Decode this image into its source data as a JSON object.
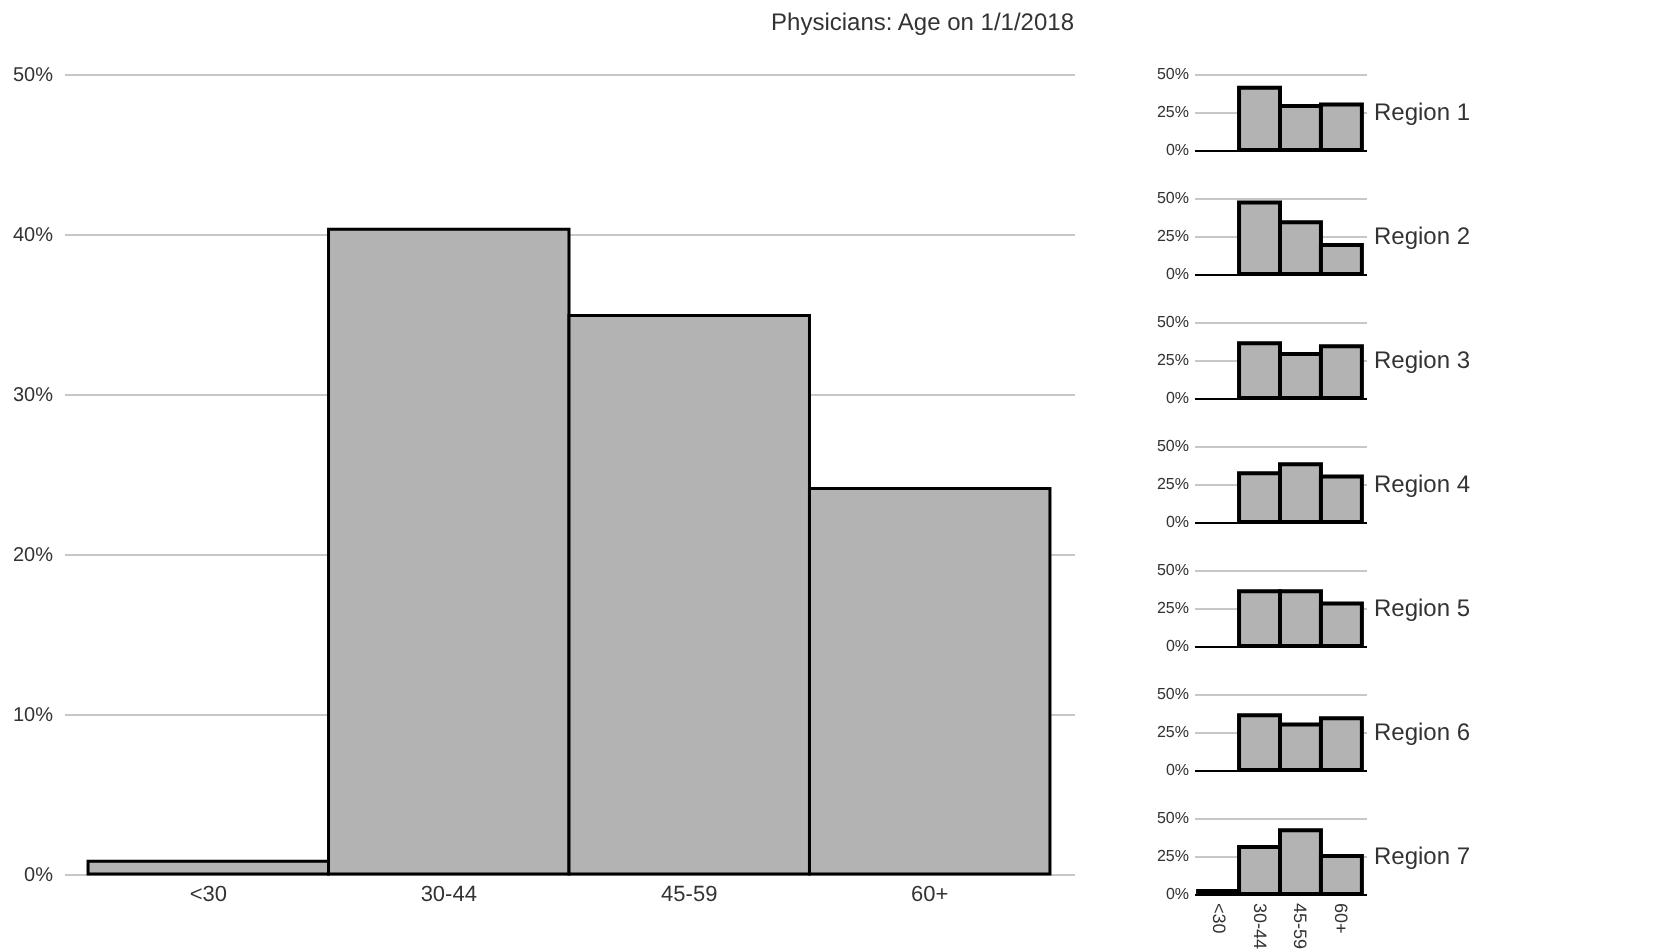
{
  "chart_data": [
    {
      "type": "bar",
      "title": "Physicians: Age on 1/1/2018",
      "categories": [
        "<30",
        "30-44",
        "45-59",
        "60+"
      ],
      "values": [
        0.8,
        40.3,
        34.9,
        24.1
      ],
      "color": "#b3b3b3",
      "ylim": [
        0,
        50
      ],
      "yticks": [
        {
          "value": 0,
          "label": "0%"
        },
        {
          "value": 10,
          "label": "10%"
        },
        {
          "value": 20,
          "label": "20%"
        },
        {
          "value": 30,
          "label": "30%"
        },
        {
          "value": 40,
          "label": "40%"
        },
        {
          "value": 50,
          "label": "50%"
        }
      ],
      "grid": "y"
    },
    {
      "type": "bar",
      "title": "Region 1",
      "categories": [
        null,
        null,
        null,
        null
      ],
      "values": [
        null,
        41,
        29,
        30
      ],
      "color": "#b3b3b3",
      "ylim": [
        0,
        50
      ],
      "yticks": [
        {
          "value": 0,
          "label": "0%"
        },
        {
          "value": 25,
          "label": "25%"
        },
        {
          "value": 50,
          "label": "50%"
        }
      ],
      "grid": "y"
    },
    {
      "type": "bar",
      "title": "Region 2",
      "categories": [
        null,
        null,
        null,
        null
      ],
      "values": [
        null,
        47,
        34,
        19
      ],
      "color": "#b3b3b3",
      "ylim": [
        0,
        50
      ],
      "yticks": [
        {
          "value": 0,
          "label": "0%"
        },
        {
          "value": 25,
          "label": "25%"
        },
        {
          "value": 50,
          "label": "50%"
        }
      ],
      "grid": "y"
    },
    {
      "type": "bar",
      "title": "Region 3",
      "categories": [
        null,
        null,
        null,
        null
      ],
      "values": [
        null,
        36,
        29,
        34
      ],
      "color": "#b3b3b3",
      "ylim": [
        0,
        50
      ],
      "yticks": [
        {
          "value": 0,
          "label": "0%"
        },
        {
          "value": 25,
          "label": "25%"
        },
        {
          "value": 50,
          "label": "50%"
        }
      ],
      "grid": "y"
    },
    {
      "type": "bar",
      "title": "Region 4",
      "categories": [
        null,
        null,
        null,
        null
      ],
      "values": [
        null,
        32,
        38,
        30
      ],
      "color": "#b3b3b3",
      "ylim": [
        0,
        50
      ],
      "yticks": [
        {
          "value": 0,
          "label": "0%"
        },
        {
          "value": 25,
          "label": "25%"
        },
        {
          "value": 50,
          "label": "50%"
        }
      ],
      "grid": "y"
    },
    {
      "type": "bar",
      "title": "Region 5",
      "categories": [
        null,
        null,
        null,
        null
      ],
      "values": [
        null,
        36,
        36,
        28
      ],
      "color": "#b3b3b3",
      "ylim": [
        0,
        50
      ],
      "yticks": [
        {
          "value": 0,
          "label": "0%"
        },
        {
          "value": 25,
          "label": "25%"
        },
        {
          "value": 50,
          "label": "50%"
        }
      ],
      "grid": "y"
    },
    {
      "type": "bar",
      "title": "Region 6",
      "categories": [
        null,
        null,
        null,
        null
      ],
      "values": [
        null,
        36,
        30,
        34
      ],
      "color": "#b3b3b3",
      "ylim": [
        0,
        50
      ],
      "yticks": [
        {
          "value": 0,
          "label": "0%"
        },
        {
          "value": 25,
          "label": "25%"
        },
        {
          "value": 50,
          "label": "50%"
        }
      ],
      "grid": "y"
    },
    {
      "type": "bar",
      "title": "Region 7",
      "categories": [
        "<30",
        "30-44",
        "45-59",
        "60+"
      ],
      "values": [
        2,
        31,
        42,
        25
      ],
      "color": "#b3b3b3",
      "ylim": [
        0,
        50
      ],
      "yticks": [
        {
          "value": 0,
          "label": "0%"
        },
        {
          "value": 25,
          "label": "25%"
        },
        {
          "value": 50,
          "label": "50%"
        }
      ],
      "grid": "y"
    }
  ]
}
